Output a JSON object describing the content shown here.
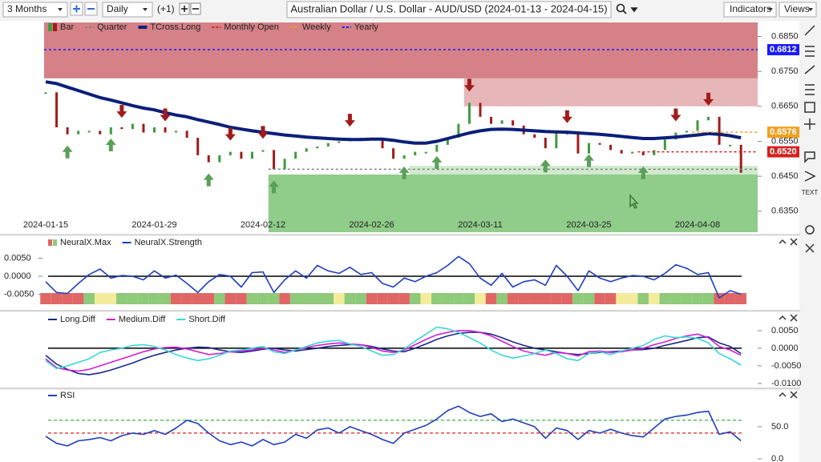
{
  "toolbar": {
    "range": "3 Months",
    "interval": "Daily",
    "offset": "(+1)",
    "title": "Australian Dollar / U.S. Dollar - AUD/USD (2024-01-13 - 2024-04-15)",
    "indicators": "Indicators",
    "views": "Views"
  },
  "side_toolbar": {
    "text_tool": "TEXT"
  },
  "chart_data": [
    {
      "type": "bars",
      "x": [
        "2024-01-15",
        "2024-01-16",
        "2024-01-17",
        "2024-01-18",
        "2024-01-19",
        "2024-01-22",
        "2024-01-23",
        "2024-01-24",
        "2024-01-25",
        "2024-01-26",
        "2024-01-29",
        "2024-01-30",
        "2024-01-31",
        "2024-02-01",
        "2024-02-02",
        "2024-02-05",
        "2024-02-06",
        "2024-02-07",
        "2024-02-08",
        "2024-02-09",
        "2024-02-12",
        "2024-02-13",
        "2024-02-14",
        "2024-02-15",
        "2024-02-16",
        "2024-02-19",
        "2024-02-20",
        "2024-02-21",
        "2024-02-22",
        "2024-02-23",
        "2024-02-26",
        "2024-02-27",
        "2024-02-28",
        "2024-02-29",
        "2024-03-01",
        "2024-03-04",
        "2024-03-05",
        "2024-03-06",
        "2024-03-07",
        "2024-03-08",
        "2024-03-11",
        "2024-03-12",
        "2024-03-13",
        "2024-03-14",
        "2024-03-15",
        "2024-03-18",
        "2024-03-19",
        "2024-03-20",
        "2024-03-21",
        "2024-03-22",
        "2024-03-25",
        "2024-03-26",
        "2024-03-27",
        "2024-03-28",
        "2024-03-29",
        "2024-04-01",
        "2024-04-02",
        "2024-04-03",
        "2024-04-04",
        "2024-04-05",
        "2024-04-08",
        "2024-04-09",
        "2024-04-10",
        "2024-04-11",
        "2024-04-12"
      ],
      "xticks": [
        "2024-01-15",
        "2024-01-29",
        "2024-02-12",
        "2024-02-26",
        "2024-03-11",
        "2024-03-25",
        "2024-04-08"
      ],
      "ylim": [
        0.629,
        0.689
      ],
      "yticks": [
        {
          "value": 0.685,
          "label": "0.6850"
        },
        {
          "value": 0.675,
          "label": "0.6750"
        },
        {
          "value": 0.665,
          "label": "0.6650"
        },
        {
          "value": 0.655,
          "label": "0.6550"
        },
        {
          "value": 0.645,
          "label": "0.6450"
        },
        {
          "value": 0.635,
          "label": "0.6350"
        }
      ],
      "zones": [
        {
          "from": "2024-01-15",
          "range": [
            0.673,
            0.689
          ],
          "color": "rgba(185,45,55,0.6)"
        },
        {
          "from": "2024-03-08",
          "range": [
            0.665,
            0.673
          ],
          "color": "rgba(185,45,55,0.35)"
        },
        {
          "from": "2024-02-13",
          "range": [
            0.629,
            0.6455
          ],
          "color": "rgba(70,170,60,0.6)"
        },
        {
          "from": "2024-03-01",
          "range": [
            0.6455,
            0.648
          ],
          "color": "rgba(70,170,60,0.25)"
        }
      ],
      "series": [
        {
          "name": "Bar",
          "kind": "bars",
          "up_color": "#3f9b3f",
          "down_color": "#a01c1c",
          "values": [
            0.669,
            0.659,
            0.657,
            0.658,
            0.658,
            0.657,
            0.659,
            0.6585,
            0.66,
            0.6575,
            0.659,
            0.6575,
            0.658,
            0.656,
            0.651,
            0.649,
            0.651,
            0.652,
            0.65,
            0.652,
            0.6525,
            0.647,
            0.65,
            0.652,
            0.653,
            0.6535,
            0.6545,
            0.655,
            0.656,
            0.6555,
            0.656,
            0.653,
            0.65,
            0.651,
            0.652,
            0.652,
            0.654,
            0.656,
            0.66,
            0.666,
            0.662,
            0.66,
            0.661,
            0.6595,
            0.657,
            0.656,
            0.653,
            0.658,
            0.657,
            0.6515,
            0.6545,
            0.654,
            0.6525,
            0.6515,
            0.652,
            0.651,
            0.6525,
            0.6555,
            0.6575,
            0.658,
            0.661,
            0.662,
            0.654,
            0.654,
            0.646
          ]
        },
        {
          "name": "Quarter",
          "kind": "level",
          "color": "#808080",
          "value": 0.647,
          "from": "2024-02-13"
        },
        {
          "name": "TCross.Long",
          "kind": "line",
          "color": "#0b1f7a",
          "values": [
            0.672,
            0.6715,
            0.6705,
            0.6695,
            0.6685,
            0.6675,
            0.6668,
            0.666,
            0.6652,
            0.6645,
            0.664,
            0.6632,
            0.6625,
            0.662,
            0.6612,
            0.6605,
            0.6598,
            0.659,
            0.6585,
            0.658,
            0.6576,
            0.6572,
            0.6568,
            0.6565,
            0.6562,
            0.656,
            0.6558,
            0.6556,
            0.6555,
            0.6555,
            0.6556,
            0.6556,
            0.6553,
            0.6548,
            0.6545,
            0.6545,
            0.655,
            0.6558,
            0.6566,
            0.6574,
            0.658,
            0.6584,
            0.6585,
            0.6584,
            0.6582,
            0.658,
            0.6578,
            0.6577,
            0.6576,
            0.6574,
            0.6572,
            0.657,
            0.6567,
            0.6564,
            0.6561,
            0.6558,
            0.6558,
            0.656,
            0.6562,
            0.6565,
            0.6568,
            0.6572,
            0.657,
            0.6566,
            0.656
          ]
        },
        {
          "name": "Monthly Open",
          "kind": "level",
          "color": "#d42020",
          "value": 0.652,
          "label": "0.6520",
          "from": "2024-04-01"
        },
        {
          "name": "Weekly",
          "kind": "level",
          "color": "#f0a020",
          "value": 0.6576,
          "label": "0.6576",
          "from": "2024-04-08"
        },
        {
          "name": "Yearly",
          "kind": "level",
          "color": "#1a1aff",
          "value": 0.6812,
          "label": "0.6812",
          "from": "2024-01-15"
        }
      ],
      "sell_signals": [
        "2024-01-24",
        "2024-01-30",
        "2024-02-07",
        "2024-02-12",
        "2024-02-22",
        "2024-03-08",
        "2024-03-21",
        "2024-04-04",
        "2024-04-09"
      ],
      "buy_signals": [
        "2024-01-17",
        "2024-01-23",
        "2024-02-05",
        "2024-02-13",
        "2024-02-29",
        "2024-03-05",
        "2024-03-19",
        "2024-03-25",
        "2024-04-01"
      ]
    },
    {
      "type": "line",
      "axis_side": "left",
      "baseline": true,
      "ylim": [
        -0.008,
        0.008
      ],
      "yticks": [
        {
          "value": 0.005,
          "label": "0.0050"
        },
        {
          "value": 0,
          "label": "0.0000"
        },
        {
          "value": -0.005,
          "label": "-0.0050"
        }
      ],
      "series": [
        {
          "name": "NeuralX.Max",
          "kind": "strip",
          "colors": [
            "#e06666",
            "#e06666",
            "#e06666",
            "#e06666",
            "#8fc97a",
            "#f4ec9c",
            "#f4ec9c",
            "#8fc97a",
            "#8fc97a",
            "#8fc97a",
            "#8fc97a",
            "#8fc97a",
            "#e06666",
            "#e06666",
            "#e06666",
            "#e06666",
            "#8fc97a",
            "#e06666",
            "#e06666",
            "#8fc97a",
            "#8fc97a",
            "#8fc97a",
            "#e06666",
            "#8fc97a",
            "#8fc97a",
            "#8fc97a",
            "#8fc97a",
            "#f4ec9c",
            "#8fc97a",
            "#8fc97a",
            "#e06666",
            "#e06666",
            "#e06666",
            "#e06666",
            "#8fc97a",
            "#f4ec9c",
            "#8fc97a",
            "#8fc97a",
            "#8fc97a",
            "#8fc97a",
            "#f4ec9c",
            "#e06666",
            "#8fc97a",
            "#e06666",
            "#e06666",
            "#e06666",
            "#e06666",
            "#e06666",
            "#e06666",
            "#8fc97a",
            "#8fc97a",
            "#e06666",
            "#e06666",
            "#f4ec9c",
            "#f4ec9c",
            "#8fc97a",
            "#f4ec9c",
            "#8fc97a",
            "#8fc97a",
            "#8fc97a",
            "#8fc97a",
            "#8fc97a",
            "#e06666",
            "#e06666",
            "#e06666"
          ]
        },
        {
          "name": "NeuralX.Strength",
          "kind": "line",
          "color": "#1f3fbf",
          "values": [
            -0.0015,
            -0.0045,
            -0.0048,
            -0.002,
            0.0005,
            0.002,
            -0.0005,
            0.0002,
            0,
            -0.001,
            0.0015,
            -0.0005,
            0.0003,
            -0.002,
            -0.0045,
            -0.0015,
            0.0005,
            0,
            -0.003,
            0.001,
            0.0012,
            -0.0045,
            -0.001,
            0.0015,
            -0.0005,
            0.003,
            0.0015,
            0.0008,
            0.0025,
            0.0005,
            0.001,
            -0.002,
            -0.003,
            -0.0005,
            -0.0015,
            0,
            0.001,
            0.003,
            0.0055,
            0.0035,
            -0.0005,
            -0.0025,
            0.0008,
            -0.003,
            -0.0015,
            -0.001,
            -0.0025,
            0.003,
            0,
            -0.004,
            0.0015,
            -0.0005,
            -0.0015,
            -0.0005,
            0.0002,
            0,
            -0.001,
            0.0008,
            0.0032,
            0.0022,
            0.0005,
            0.001,
            -0.006,
            -0.004,
            -0.005
          ]
        }
      ]
    },
    {
      "type": "line",
      "baseline": true,
      "ylim": [
        -0.0114,
        0.0068
      ],
      "yticks": [
        {
          "value": 0.005,
          "label": "0.0050"
        },
        {
          "value": 0,
          "label": "0.0000"
        },
        {
          "value": -0.005,
          "label": "-0.0050"
        },
        {
          "value": -0.01,
          "label": "-0.0100"
        }
      ],
      "series": [
        {
          "name": "Long.Diff",
          "kind": "line",
          "color": "#1a2a8a",
          "values": [
            -0.002,
            -0.0045,
            -0.006,
            -0.0072,
            -0.0075,
            -0.007,
            -0.0062,
            -0.0052,
            -0.0042,
            -0.003,
            -0.002,
            -0.0012,
            -0.0005,
            0,
            0.0003,
            0.0002,
            -0.0005,
            -0.001,
            -0.0012,
            -0.0008,
            -0.0003,
            0,
            -0.0005,
            -0.0008,
            -0.0004,
            0,
            0.0005,
            0.0008,
            0.001,
            0.001,
            0.0005,
            -0.0002,
            -0.0008,
            -0.001,
            0,
            0.0012,
            0.0025,
            0.0035,
            0.0042,
            0.0045,
            0.0045,
            0.004,
            0.003,
            0.0018,
            0.0008,
            0,
            -0.0005,
            -0.001,
            -0.0015,
            -0.0018,
            -0.0015,
            -0.0012,
            -0.001,
            -0.0008,
            -0.0005,
            -0.0004,
            0,
            0.0008,
            0.0015,
            0.0022,
            0.003,
            0.0032,
            0.0015,
            0.0005,
            -0.0015
          ]
        },
        {
          "name": "Medium.Diff",
          "kind": "line",
          "color": "#d41ed4",
          "values": [
            -0.003,
            -0.0055,
            -0.0062,
            -0.0065,
            -0.006,
            -0.005,
            -0.004,
            -0.003,
            -0.002,
            -0.001,
            -0.0002,
            0.0002,
            0.0003,
            -0.0002,
            -0.001,
            -0.0018,
            -0.0015,
            -0.001,
            -0.0008,
            -0.0005,
            0,
            -0.0005,
            -0.0012,
            -0.0005,
            0.0002,
            0.0008,
            0.0012,
            0.0015,
            0.0012,
            0.001,
            0.0002,
            -0.0008,
            -0.0012,
            -0.0005,
            0.001,
            0.0025,
            0.0038,
            0.0045,
            0.005,
            0.005,
            0.0045,
            0.0035,
            0.002,
            0.0005,
            -0.0008,
            -0.0015,
            -0.002,
            -0.0012,
            -0.0015,
            -0.0022,
            -0.001,
            -0.0008,
            -0.0012,
            -0.001,
            -0.0005,
            0,
            0.001,
            0.0018,
            0.0028,
            0.0035,
            0.004,
            0.003,
            0.0005,
            -0.0005,
            -0.002
          ]
        },
        {
          "name": "Short.Diff",
          "kind": "line",
          "color": "#38d6d6",
          "values": [
            -0.0035,
            -0.0058,
            -0.005,
            -0.004,
            -0.003,
            -0.0012,
            -0.0005,
            0,
            0.0008,
            0.001,
            0.0005,
            -0.0005,
            -0.0018,
            -0.0028,
            -0.0035,
            -0.003,
            -0.002,
            -0.0008,
            -0.0005,
            0,
            0.0005,
            -0.001,
            -0.0015,
            -0.0005,
            0.0005,
            0.0015,
            0.002,
            0.0022,
            0.0012,
            0.0005,
            -0.0008,
            -0.002,
            -0.0018,
            -0.0002,
            0.002,
            0.004,
            0.006,
            0.0055,
            0.0045,
            0.003,
            0.0015,
            -0.0005,
            -0.002,
            -0.0028,
            -0.0022,
            -0.0015,
            -0.0005,
            -0.0015,
            -0.003,
            -0.0035,
            -0.0015,
            -0.001,
            -0.0018,
            -0.0008,
            0,
            0.0008,
            0.0025,
            0.0035,
            0.003,
            0.0032,
            0.0028,
            0.0015,
            -0.0015,
            -0.003,
            -0.0048
          ]
        }
      ]
    },
    {
      "type": "line",
      "ylim": [
        -5,
        91
      ],
      "yticks": [
        {
          "value": 50,
          "label": "50.0"
        },
        {
          "value": 0,
          "label": "0.0"
        }
      ],
      "levels": [
        {
          "value": 60,
          "color": "#3cb043"
        },
        {
          "value": 40,
          "color": "#e02020"
        }
      ],
      "series": [
        {
          "name": "RSI",
          "kind": "line",
          "color": "#1f3fbf",
          "values": [
            35,
            24,
            20,
            28,
            30,
            33,
            28,
            36,
            40,
            38,
            44,
            38,
            48,
            60,
            55,
            40,
            28,
            22,
            26,
            20,
            30,
            22,
            26,
            38,
            32,
            45,
            48,
            40,
            50,
            44,
            38,
            30,
            24,
            40,
            46,
            52,
            62,
            75,
            82,
            72,
            66,
            70,
            58,
            62,
            56,
            50,
            32,
            48,
            44,
            30,
            44,
            40,
            46,
            40,
            36,
            34,
            48,
            62,
            66,
            68,
            72,
            74,
            38,
            42,
            28
          ]
        }
      ]
    }
  ]
}
